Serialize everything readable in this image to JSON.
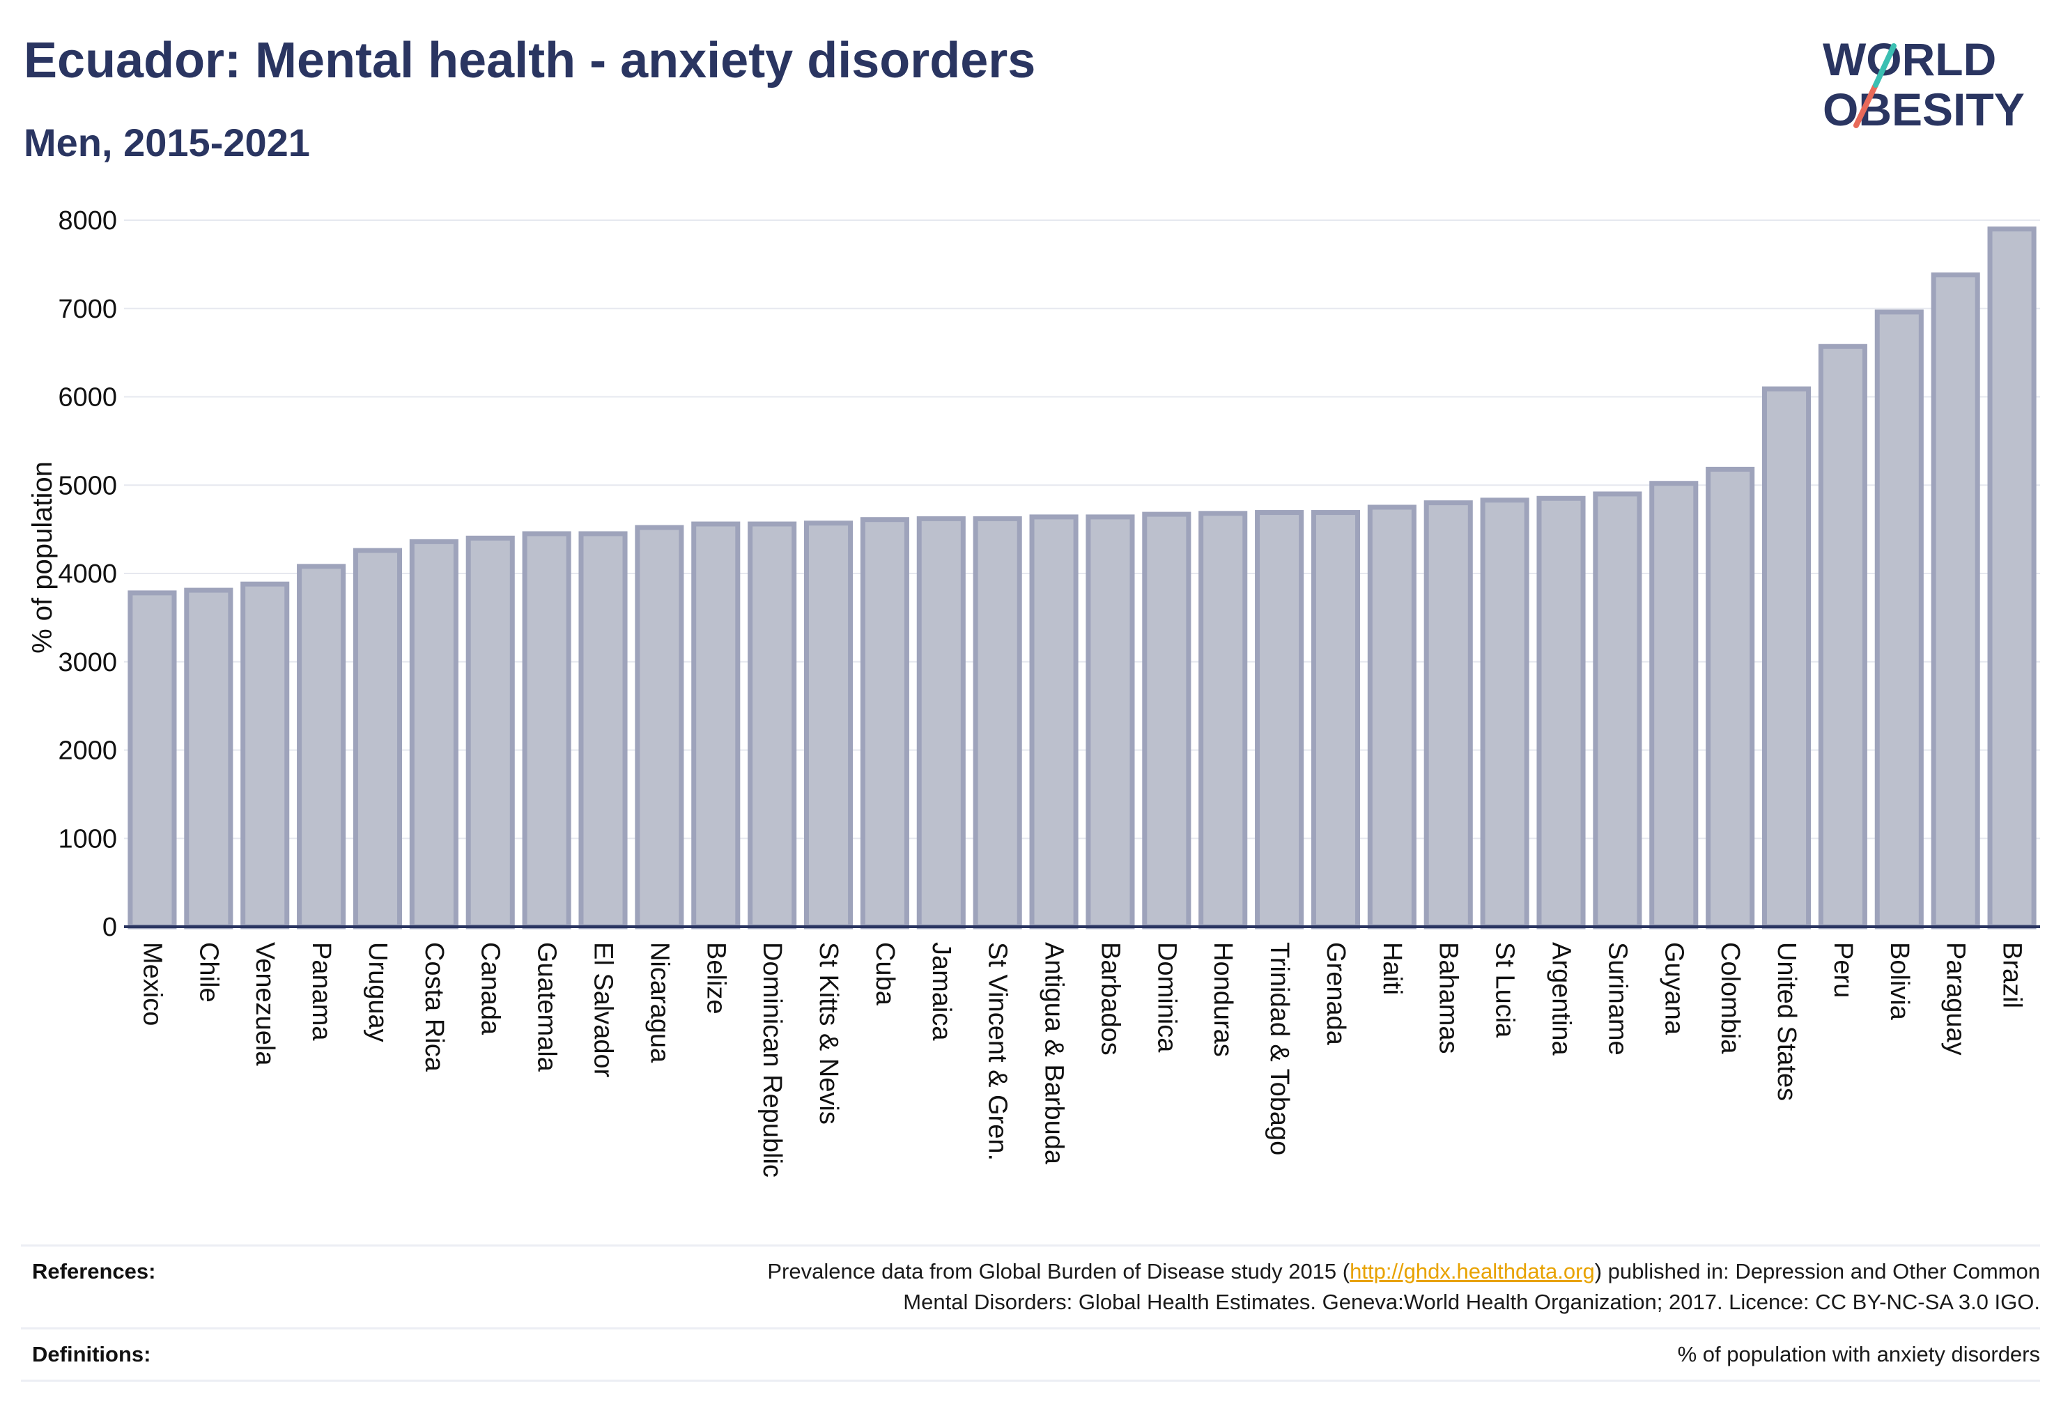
{
  "header": {
    "title": "Ecuador: Mental health - anxiety disorders",
    "subtitle": "Men, 2015-2021"
  },
  "logo": {
    "line1": "WORLD",
    "line2": "OBESITY",
    "colors": {
      "text": "#2a3561",
      "slash_teal": "#3bbfb2",
      "slash_red": "#e86a5a"
    }
  },
  "colors": {
    "bar_fill": "#bcc0cd",
    "bar_stroke": "#9ea3bb",
    "axis": "#2a3561",
    "grid": "#e6e8ef"
  },
  "chart_data": {
    "type": "bar",
    "ylabel": "% of population",
    "ylim": [
      0,
      8000
    ],
    "yticks": [
      0,
      1000,
      2000,
      3000,
      4000,
      5000,
      6000,
      7000,
      8000
    ],
    "grid": true,
    "categories": [
      "Mexico",
      "Chile",
      "Venezuela",
      "Panama",
      "Uruguay",
      "Costa Rica",
      "Canada",
      "Guatemala",
      "El Salvador",
      "Nicaragua",
      "Belize",
      "Dominican Republic",
      "St Kitts & Nevis",
      "Cuba",
      "Jamaica",
      "St Vincent & Gren.",
      "Antigua & Barbuda",
      "Barbados",
      "Dominica",
      "Honduras",
      "Trinidad & Tobago",
      "Grenada",
      "Haiti",
      "Bahamas",
      "St Lucia",
      "Argentina",
      "Suriname",
      "Guyana",
      "Colombia",
      "United States",
      "Peru",
      "Bolivia",
      "Paraguay",
      "Brazil"
    ],
    "values": [
      3780,
      3810,
      3880,
      4080,
      4260,
      4360,
      4400,
      4450,
      4450,
      4520,
      4560,
      4560,
      4570,
      4610,
      4620,
      4620,
      4640,
      4640,
      4670,
      4680,
      4690,
      4690,
      4750,
      4800,
      4830,
      4850,
      4900,
      5020,
      5180,
      6090,
      6570,
      6960,
      7380,
      7900
    ]
  },
  "references": {
    "label": "References:",
    "text_before": "Prevalence data from Global Burden of Disease study 2015 (",
    "link": "http://ghdx.healthdata.org",
    "text_after": ") published in: Depression and Other Common",
    "line2": "Mental Disorders: Global Health Estimates. Geneva:World Health Organization; 2017. Licence: CC BY-NC-SA 3.0 IGO."
  },
  "definitions": {
    "label": "Definitions:",
    "text": "% of population with anxiety disorders"
  }
}
